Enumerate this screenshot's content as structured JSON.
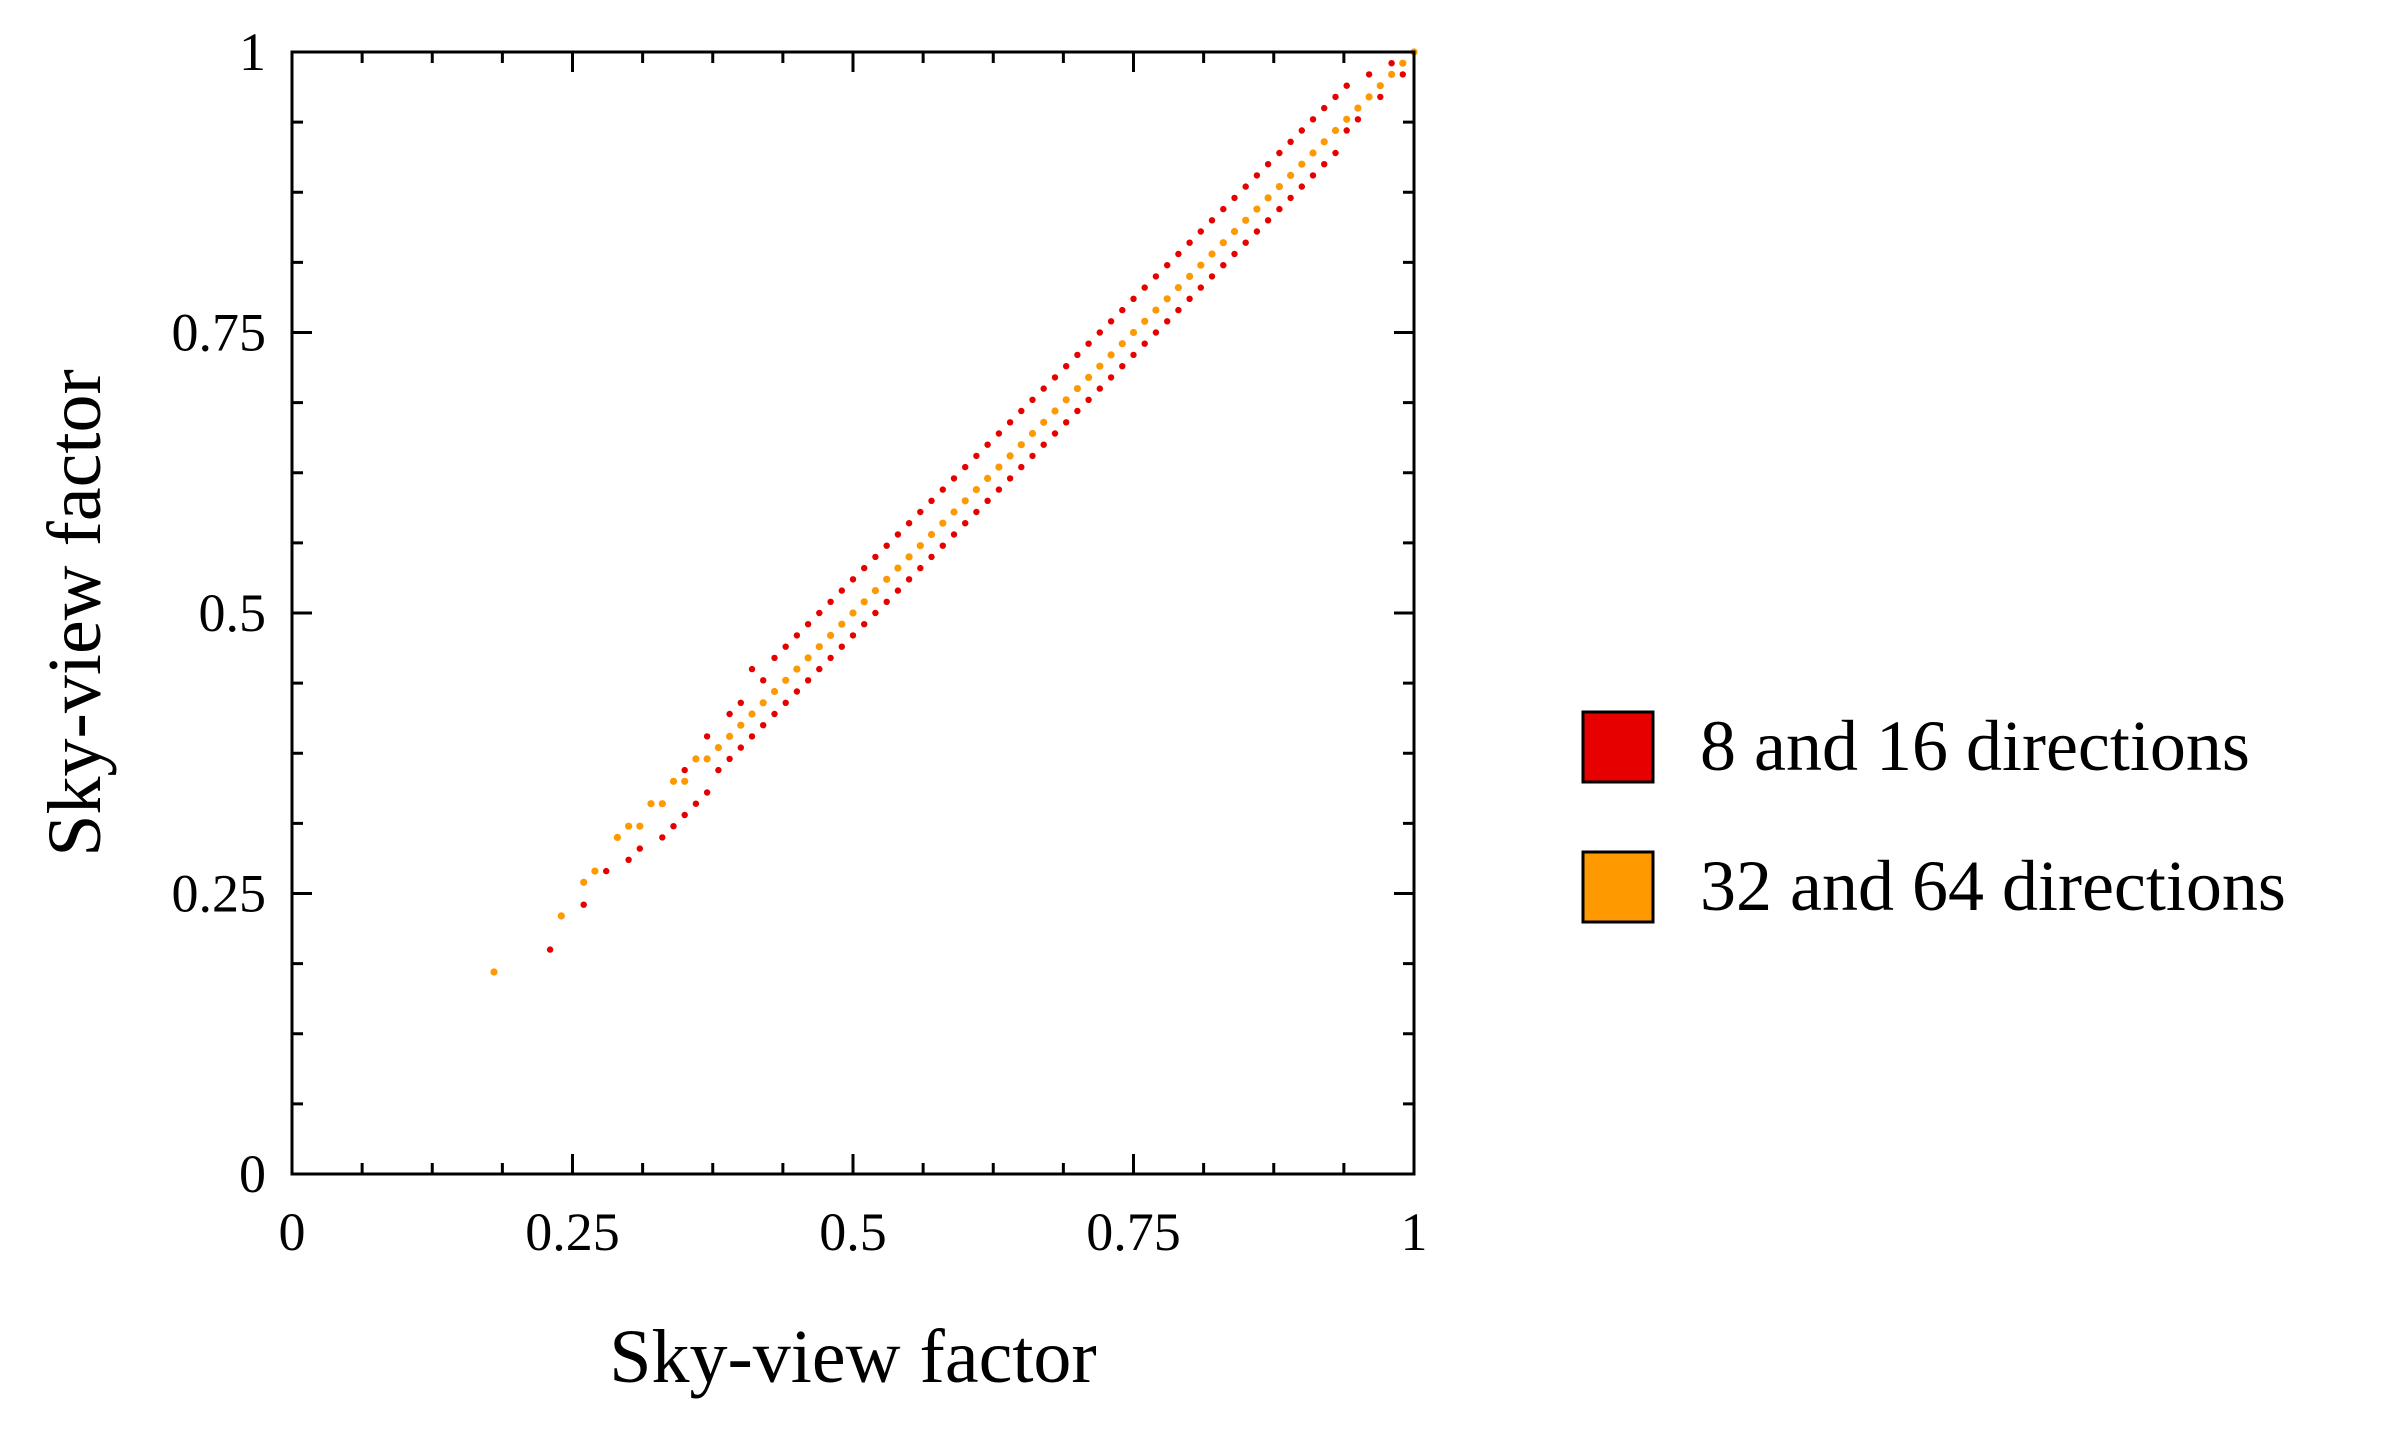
{
  "chart_data": {
    "type": "scatter",
    "title": "",
    "xlabel": "Sky-view factor",
    "ylabel": "Sky-view factor",
    "xlim": [
      0,
      1
    ],
    "ylim": [
      0,
      1
    ],
    "grid": false,
    "legend_position": "right",
    "x_ticks": [
      {
        "value": 0,
        "label": "0"
      },
      {
        "value": 0.25,
        "label": "0.25"
      },
      {
        "value": 0.5,
        "label": "0.5"
      },
      {
        "value": 0.75,
        "label": "0.75"
      },
      {
        "value": 1,
        "label": "1"
      }
    ],
    "y_ticks": [
      {
        "value": 0,
        "label": "0"
      },
      {
        "value": 0.25,
        "label": "0.25"
      },
      {
        "value": 0.5,
        "label": "0.5"
      },
      {
        "value": 0.75,
        "label": "0.75"
      },
      {
        "value": 1,
        "label": "1"
      }
    ],
    "series": [
      {
        "name": "8 and 16 directions",
        "color": "#e60000",
        "points": [
          [
            0.23,
            0.2
          ],
          [
            0.26,
            0.24
          ],
          [
            0.28,
            0.27
          ],
          [
            0.3,
            0.28
          ],
          [
            0.3,
            0.31
          ],
          [
            0.31,
            0.29
          ],
          [
            0.32,
            0.33
          ],
          [
            0.33,
            0.3
          ],
          [
            0.34,
            0.31
          ],
          [
            0.35,
            0.36
          ],
          [
            0.35,
            0.32
          ],
          [
            0.36,
            0.33
          ],
          [
            0.37,
            0.39
          ],
          [
            0.37,
            0.34
          ],
          [
            0.38,
            0.36
          ],
          [
            0.39,
            0.41
          ],
          [
            0.39,
            0.37
          ],
          [
            0.4,
            0.38
          ],
          [
            0.4,
            0.42
          ],
          [
            0.41,
            0.39
          ],
          [
            0.41,
            0.45
          ],
          [
            0.42,
            0.4
          ],
          [
            0.42,
            0.44
          ],
          [
            0.43,
            0.41
          ],
          [
            0.43,
            0.46
          ],
          [
            0.44,
            0.42
          ],
          [
            0.44,
            0.47
          ],
          [
            0.45,
            0.43
          ],
          [
            0.45,
            0.48
          ],
          [
            0.46,
            0.44
          ],
          [
            0.46,
            0.49
          ],
          [
            0.47,
            0.45
          ],
          [
            0.47,
            0.5
          ],
          [
            0.48,
            0.46
          ],
          [
            0.48,
            0.51
          ],
          [
            0.49,
            0.47
          ],
          [
            0.49,
            0.52
          ],
          [
            0.5,
            0.48
          ],
          [
            0.5,
            0.53
          ],
          [
            0.51,
            0.49
          ],
          [
            0.51,
            0.54
          ],
          [
            0.52,
            0.5
          ],
          [
            0.52,
            0.55
          ],
          [
            0.53,
            0.51
          ],
          [
            0.53,
            0.56
          ],
          [
            0.54,
            0.52
          ],
          [
            0.54,
            0.57
          ],
          [
            0.55,
            0.53
          ],
          [
            0.55,
            0.58
          ],
          [
            0.56,
            0.54
          ],
          [
            0.56,
            0.59
          ],
          [
            0.57,
            0.55
          ],
          [
            0.57,
            0.6
          ],
          [
            0.58,
            0.56
          ],
          [
            0.58,
            0.61
          ],
          [
            0.59,
            0.57
          ],
          [
            0.59,
            0.62
          ],
          [
            0.6,
            0.58
          ],
          [
            0.6,
            0.63
          ],
          [
            0.61,
            0.59
          ],
          [
            0.61,
            0.64
          ],
          [
            0.62,
            0.6
          ],
          [
            0.62,
            0.65
          ],
          [
            0.63,
            0.61
          ],
          [
            0.63,
            0.66
          ],
          [
            0.64,
            0.62
          ],
          [
            0.64,
            0.67
          ],
          [
            0.65,
            0.63
          ],
          [
            0.65,
            0.68
          ],
          [
            0.66,
            0.64
          ],
          [
            0.66,
            0.69
          ],
          [
            0.67,
            0.65
          ],
          [
            0.67,
            0.7
          ],
          [
            0.68,
            0.66
          ],
          [
            0.68,
            0.71
          ],
          [
            0.69,
            0.67
          ],
          [
            0.69,
            0.72
          ],
          [
            0.7,
            0.68
          ],
          [
            0.7,
            0.73
          ],
          [
            0.71,
            0.69
          ],
          [
            0.71,
            0.74
          ],
          [
            0.72,
            0.7
          ],
          [
            0.72,
            0.75
          ],
          [
            0.73,
            0.71
          ],
          [
            0.73,
            0.76
          ],
          [
            0.74,
            0.72
          ],
          [
            0.74,
            0.77
          ],
          [
            0.75,
            0.73
          ],
          [
            0.75,
            0.78
          ],
          [
            0.76,
            0.74
          ],
          [
            0.76,
            0.79
          ],
          [
            0.77,
            0.75
          ],
          [
            0.77,
            0.8
          ],
          [
            0.78,
            0.76
          ],
          [
            0.78,
            0.81
          ],
          [
            0.79,
            0.77
          ],
          [
            0.79,
            0.82
          ],
          [
            0.8,
            0.78
          ],
          [
            0.8,
            0.83
          ],
          [
            0.81,
            0.79
          ],
          [
            0.81,
            0.84
          ],
          [
            0.82,
            0.8
          ],
          [
            0.82,
            0.85
          ],
          [
            0.83,
            0.81
          ],
          [
            0.83,
            0.86
          ],
          [
            0.84,
            0.82
          ],
          [
            0.84,
            0.87
          ],
          [
            0.85,
            0.83
          ],
          [
            0.85,
            0.88
          ],
          [
            0.86,
            0.84
          ],
          [
            0.86,
            0.89
          ],
          [
            0.87,
            0.85
          ],
          [
            0.87,
            0.9
          ],
          [
            0.88,
            0.86
          ],
          [
            0.88,
            0.91
          ],
          [
            0.89,
            0.87
          ],
          [
            0.89,
            0.92
          ],
          [
            0.9,
            0.88
          ],
          [
            0.9,
            0.93
          ],
          [
            0.91,
            0.89
          ],
          [
            0.91,
            0.94
          ],
          [
            0.92,
            0.9
          ],
          [
            0.92,
            0.95
          ],
          [
            0.93,
            0.91
          ],
          [
            0.93,
            0.96
          ],
          [
            0.94,
            0.93
          ],
          [
            0.94,
            0.97
          ],
          [
            0.95,
            0.94
          ],
          [
            0.96,
            0.98
          ],
          [
            0.97,
            0.96
          ],
          [
            0.98,
            0.99
          ],
          [
            0.99,
            0.98
          ]
        ]
      },
      {
        "name": "32 and 64 directions",
        "color": "#ff9900",
        "points": [
          [
            0.18,
            0.18
          ],
          [
            0.24,
            0.23
          ],
          [
            0.26,
            0.26
          ],
          [
            0.27,
            0.27
          ],
          [
            0.29,
            0.3
          ],
          [
            0.3,
            0.31
          ],
          [
            0.31,
            0.31
          ],
          [
            0.32,
            0.33
          ],
          [
            0.33,
            0.33
          ],
          [
            0.34,
            0.35
          ],
          [
            0.35,
            0.35
          ],
          [
            0.36,
            0.37
          ],
          [
            0.37,
            0.37
          ],
          [
            0.38,
            0.38
          ],
          [
            0.39,
            0.39
          ],
          [
            0.4,
            0.4
          ],
          [
            0.41,
            0.41
          ],
          [
            0.42,
            0.42
          ],
          [
            0.43,
            0.43
          ],
          [
            0.44,
            0.44
          ],
          [
            0.45,
            0.45
          ],
          [
            0.46,
            0.46
          ],
          [
            0.47,
            0.47
          ],
          [
            0.48,
            0.48
          ],
          [
            0.49,
            0.49
          ],
          [
            0.5,
            0.5
          ],
          [
            0.51,
            0.51
          ],
          [
            0.52,
            0.52
          ],
          [
            0.53,
            0.53
          ],
          [
            0.54,
            0.54
          ],
          [
            0.55,
            0.55
          ],
          [
            0.56,
            0.56
          ],
          [
            0.57,
            0.57
          ],
          [
            0.58,
            0.58
          ],
          [
            0.59,
            0.59
          ],
          [
            0.6,
            0.6
          ],
          [
            0.61,
            0.61
          ],
          [
            0.62,
            0.62
          ],
          [
            0.63,
            0.63
          ],
          [
            0.64,
            0.64
          ],
          [
            0.65,
            0.65
          ],
          [
            0.66,
            0.66
          ],
          [
            0.67,
            0.67
          ],
          [
            0.68,
            0.68
          ],
          [
            0.69,
            0.69
          ],
          [
            0.7,
            0.7
          ],
          [
            0.71,
            0.71
          ],
          [
            0.72,
            0.72
          ],
          [
            0.73,
            0.73
          ],
          [
            0.74,
            0.74
          ],
          [
            0.75,
            0.75
          ],
          [
            0.76,
            0.76
          ],
          [
            0.77,
            0.77
          ],
          [
            0.78,
            0.78
          ],
          [
            0.79,
            0.79
          ],
          [
            0.8,
            0.8
          ],
          [
            0.81,
            0.81
          ],
          [
            0.82,
            0.82
          ],
          [
            0.83,
            0.83
          ],
          [
            0.84,
            0.84
          ],
          [
            0.85,
            0.85
          ],
          [
            0.86,
            0.86
          ],
          [
            0.87,
            0.87
          ],
          [
            0.88,
            0.88
          ],
          [
            0.89,
            0.89
          ],
          [
            0.9,
            0.9
          ],
          [
            0.91,
            0.91
          ],
          [
            0.92,
            0.92
          ],
          [
            0.93,
            0.93
          ],
          [
            0.94,
            0.94
          ],
          [
            0.95,
            0.95
          ],
          [
            0.96,
            0.96
          ],
          [
            0.97,
            0.97
          ],
          [
            0.98,
            0.98
          ],
          [
            0.99,
            0.99
          ],
          [
            1.0,
            1.0
          ]
        ]
      }
    ]
  }
}
